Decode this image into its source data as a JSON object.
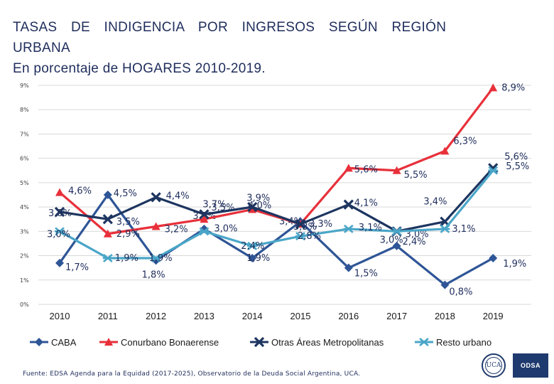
{
  "title": {
    "line1": "TASAS DE INDIGENCIA POR INGRESOS SEGÚN REGIÓN",
    "line2": "URBANA",
    "line3": "En porcentaje de HOGARES 2010-2019."
  },
  "source": "Fuente: EDSA Agenda para la Equidad (2017-2025), Observatorio de la Deuda Social Argentina, UCA.",
  "logos": {
    "seal_text": "UCA",
    "odsa_text": "ODSA"
  },
  "chart_data": {
    "type": "line",
    "categories": [
      "2010",
      "2011",
      "2012",
      "2013",
      "2014",
      "2015",
      "2016",
      "2017",
      "2018",
      "2019"
    ],
    "ylim": [
      0,
      9
    ],
    "yticks": [
      "0%",
      "1%",
      "2%",
      "3%",
      "4%",
      "5%",
      "6%",
      "7%",
      "8%",
      "9%"
    ],
    "grid": true,
    "legend": "bottom",
    "series": [
      {
        "name": "CABA",
        "color": "#2e5596",
        "marker": "cross-diamond",
        "values": [
          1.7,
          4.5,
          1.8,
          3.1,
          1.9,
          3.4,
          1.5,
          2.4,
          0.8,
          1.9
        ],
        "labels": [
          "1,7%",
          "4,5%",
          "1,8%",
          "3,1%",
          "1,9%",
          "3,4%",
          "1,5%",
          "2,4%",
          "0,8%",
          "1,9%"
        ]
      },
      {
        "name": "Conurbano Bonaerense",
        "color": "#e8303a",
        "marker": "triangle",
        "values": [
          4.6,
          2.9,
          3.2,
          3.5,
          3.9,
          3.3,
          5.6,
          5.5,
          6.3,
          8.9
        ],
        "labels": [
          "4,6%",
          "2,9%",
          "3,2%",
          "3,5%",
          "3,9%",
          "3,3%",
          "5,6%",
          "5,5%",
          "6,3%",
          "8,9%"
        ]
      },
      {
        "name": "Otras Áreas Metropolitanas",
        "color": "#1d3560",
        "marker": "x",
        "values": [
          3.8,
          3.5,
          4.4,
          3.7,
          4.0,
          3.3,
          4.1,
          3.0,
          3.4,
          5.6
        ],
        "labels": [
          "3,8%",
          "3,5%",
          "4,4%",
          "3,7%",
          "4,0%",
          "3,3%",
          "4,1%",
          "3,0%",
          "3,4%",
          "5,6%"
        ]
      },
      {
        "name": "Resto urbano",
        "color": "#4aa6c8",
        "marker": "asterisk",
        "values": [
          3.0,
          1.9,
          1.9,
          3.0,
          2.4,
          2.8,
          3.1,
          3.0,
          3.1,
          5.5
        ],
        "labels": [
          "3,0%",
          "1,9%",
          "1,9%",
          "3,0%",
          "2,4%",
          "2,8%",
          "3,1%",
          "3,0%",
          "3,1%",
          "5,5%"
        ]
      }
    ]
  }
}
